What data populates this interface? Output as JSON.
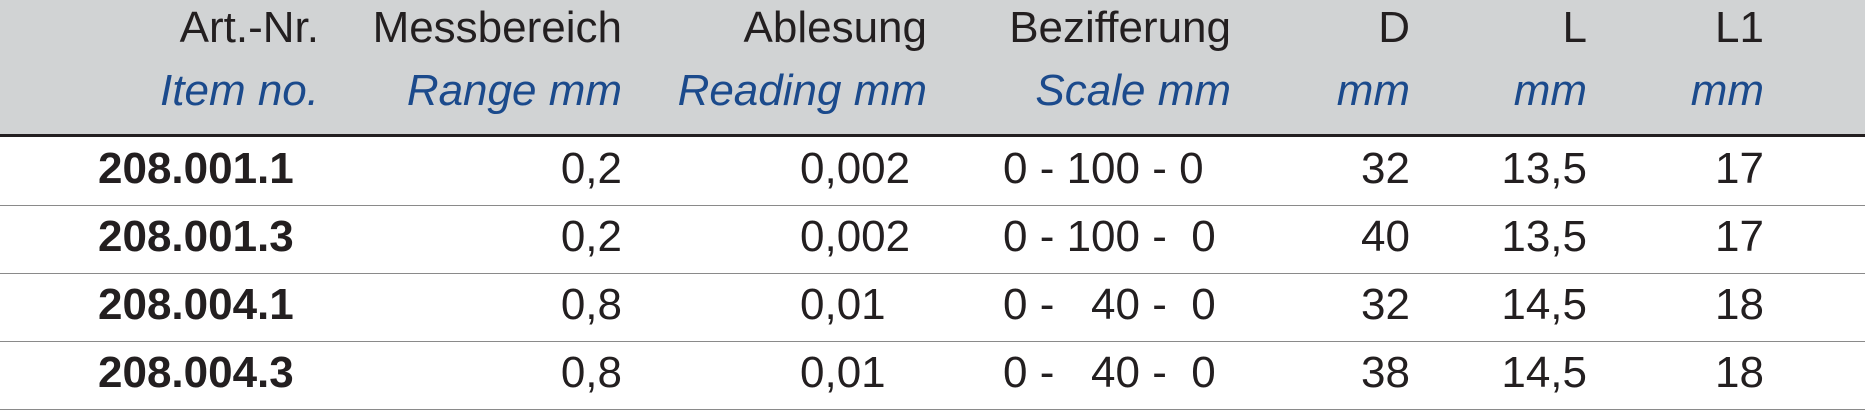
{
  "table": {
    "header_de": [
      "Art.-Nr.",
      "Messbereich",
      "Ablesung",
      "Bezifferung",
      "D",
      "L",
      "L1"
    ],
    "header_en": [
      "Item no.",
      "Range mm",
      "Reading mm",
      "Scale mm",
      "mm",
      "mm",
      "mm"
    ],
    "rows": [
      [
        "208.001.1",
        "0,2",
        "0,002",
        "0 - 100 - 0",
        "32",
        "13,5",
        "17"
      ],
      [
        "208.001.3",
        "0,2",
        "0,002",
        "0 - 100 -  0",
        "40",
        "13,5",
        "17"
      ],
      [
        "208.004.1",
        "0,8",
        "0,01",
        "0 -   40 -  0",
        "32",
        "14,5",
        "18"
      ],
      [
        "208.004.3",
        "0,8",
        "0,01",
        "0 -   40 -  0",
        "38",
        "14,5",
        "18"
      ]
    ]
  }
}
